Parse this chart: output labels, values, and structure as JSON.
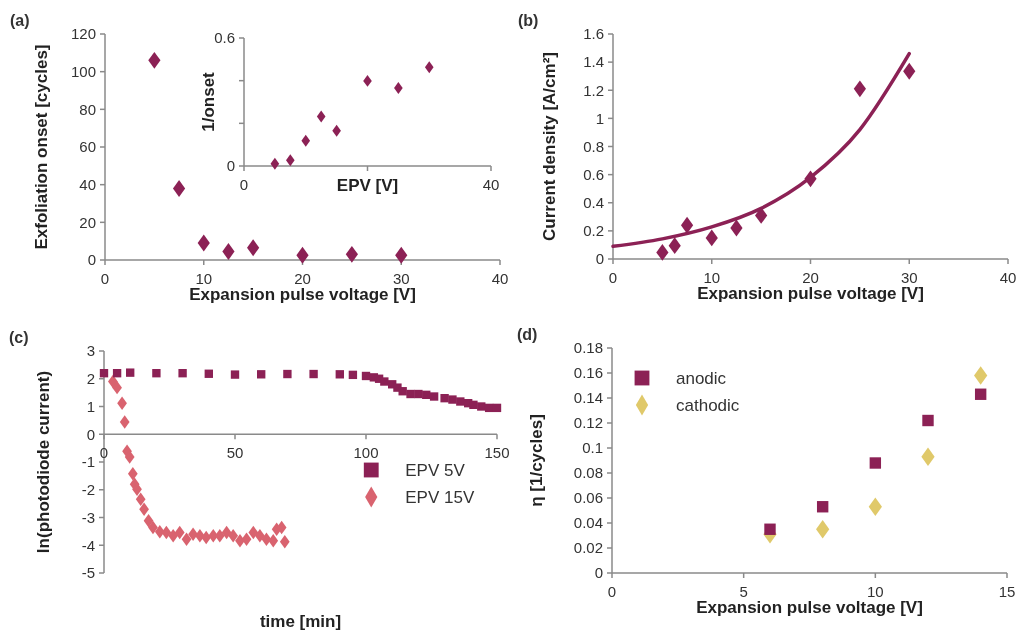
{
  "chart_data": [
    {
      "type": "scatter",
      "title": "(a)",
      "xlabel": "Expansion pulse voltage [V]",
      "ylabel": "Exfoliation onset [cycles]",
      "xlim": [
        0,
        40
      ],
      "xticks": [
        0,
        10,
        20,
        30,
        40
      ],
      "ylim": [
        0,
        120
      ],
      "yticks": [
        0,
        20,
        40,
        60,
        80,
        100,
        120
      ],
      "grid": false,
      "legend": false,
      "marker": "diamond",
      "series": [
        {
          "color": "#8c2155",
          "x": [
            5,
            7.5,
            10,
            12.5,
            15,
            20,
            25,
            30
          ],
          "values": [
            106,
            38,
            9,
            4.5,
            6.5,
            2.5,
            3,
            2.5
          ]
        }
      ]
    },
    {
      "type": "scatter",
      "xlabel": "EPV [V]",
      "ylabel": "1/onset",
      "xlim": [
        0,
        40
      ],
      "xticks": [
        0,
        {
          "value": 20,
          "label": null
        },
        40
      ],
      "ylim": [
        0,
        0.6
      ],
      "yticks": [
        0,
        {
          "value": 0.2,
          "label": null
        },
        {
          "value": 0.4,
          "label": null
        },
        0.6
      ],
      "grid": false,
      "legend": false,
      "marker": "diamond",
      "series": [
        {
          "color": "#8c2155",
          "x": [
            5,
            7.5,
            10,
            12.5,
            15,
            20,
            25,
            30
          ],
          "values": [
            0.011,
            0.027,
            0.118,
            0.232,
            0.165,
            0.399,
            0.366,
            0.463
          ]
        }
      ]
    },
    {
      "type": "scatter",
      "title": "(b)",
      "xlabel": "Expansion pulse voltage [V]",
      "ylabel": "Current density [A/cm²]",
      "xlim": [
        0,
        40
      ],
      "xticks": [
        0,
        10,
        20,
        30,
        40
      ],
      "ylim": [
        0,
        1.6
      ],
      "yticks": [
        0,
        0.2,
        0.4,
        0.6,
        0.8,
        1,
        1.2,
        1.4,
        1.6
      ],
      "grid": false,
      "legend": false,
      "marker": "diamond",
      "series": [
        {
          "color": "#8c2155",
          "x": [
            5,
            6.25,
            7.5,
            10,
            12.5,
            15,
            20,
            25,
            30
          ],
          "values": [
            0.047,
            0.095,
            0.24,
            0.15,
            0.22,
            0.31,
            0.57,
            1.21,
            1.335
          ]
        },
        {
          "type": "line",
          "color": "#8c2155",
          "marker": "none",
          "line_style": "solid",
          "x": [
            0,
            5,
            10,
            15,
            20,
            25,
            30
          ],
          "values": [
            0.09,
            0.143,
            0.228,
            0.36,
            0.58,
            0.92,
            1.46
          ]
        }
      ]
    },
    {
      "type": "scatter",
      "title": "(c)",
      "xlabel": "time [min]",
      "ylabel": "ln(photodiode current)",
      "xlim": [
        0,
        150
      ],
      "xticks": [
        0,
        50,
        100,
        150
      ],
      "ylim": [
        -5,
        3
      ],
      "yticks": [
        -5,
        -4,
        -3,
        -2,
        -1,
        0,
        1,
        2,
        3
      ],
      "grid": false,
      "legend": "right",
      "series": [
        {
          "name": "EPV 5V",
          "color": "#8c2155",
          "marker": "square",
          "x": [
            0,
            5,
            10,
            20,
            30,
            40,
            50,
            60,
            70,
            80,
            90,
            95,
            100,
            103,
            105,
            107,
            110,
            112,
            114,
            117,
            120,
            123,
            126,
            130,
            133,
            136,
            139,
            141,
            144,
            147,
            150
          ],
          "values": [
            2.2,
            2.2,
            2.22,
            2.2,
            2.2,
            2.18,
            2.15,
            2.16,
            2.17,
            2.17,
            2.16,
            2.14,
            2.1,
            2.05,
            2.0,
            1.9,
            1.8,
            1.68,
            1.55,
            1.45,
            1.45,
            1.42,
            1.36,
            1.3,
            1.25,
            1.18,
            1.12,
            1.06,
            1.0,
            0.95,
            0.95
          ]
        },
        {
          "name": "EPV 15V",
          "color": "#d9636f",
          "marker": "diamond",
          "x": [
            3.4,
            5,
            6.9,
            7.9,
            8.8,
            9.8,
            11,
            11.7,
            12.6,
            14,
            15.3,
            17,
            18.7,
            21.3,
            23.8,
            26.4,
            28.9,
            31.5,
            34,
            36.6,
            39,
            41.7,
            44.2,
            46.8,
            49.3,
            51.9,
            54.4,
            57,
            59.5,
            62,
            64.6,
            65.9,
            67.8,
            69
          ],
          "values": [
            1.9,
            1.68,
            1.12,
            0.44,
            -0.61,
            -0.82,
            -1.42,
            -1.8,
            -1.98,
            -2.34,
            -2.7,
            -3.12,
            -3.36,
            -3.51,
            -3.54,
            -3.66,
            -3.54,
            -3.78,
            -3.6,
            -3.66,
            -3.72,
            -3.66,
            -3.66,
            -3.54,
            -3.66,
            -3.84,
            -3.78,
            -3.54,
            -3.66,
            -3.78,
            -3.84,
            -3.42,
            -3.36,
            -3.87
          ]
        }
      ]
    },
    {
      "type": "scatter",
      "title": "(d)",
      "xlabel": "Expansion pulse voltage [V]",
      "ylabel": "η [1/cycles]",
      "xlim": [
        0,
        15
      ],
      "xticks": [
        0,
        5,
        10,
        15
      ],
      "ylim": [
        0,
        0.18
      ],
      "yticks": [
        0,
        0.02,
        0.04,
        0.06,
        0.08,
        0.1,
        0.12,
        0.14,
        0.16,
        0.18
      ],
      "grid": false,
      "legend": "top left",
      "series": [
        {
          "name": "anodic",
          "color": "#8c2155",
          "marker": "square",
          "x": [
            6,
            8,
            10,
            12,
            14
          ],
          "values": [
            0.035,
            0.053,
            0.088,
            0.122,
            0.143
          ]
        },
        {
          "name": "cathodic",
          "color": "#e0c96a",
          "marker": "diamond",
          "x": [
            6,
            8,
            10,
            12,
            14
          ],
          "values": [
            0.031,
            0.035,
            0.053,
            0.093,
            0.158
          ]
        }
      ]
    }
  ]
}
